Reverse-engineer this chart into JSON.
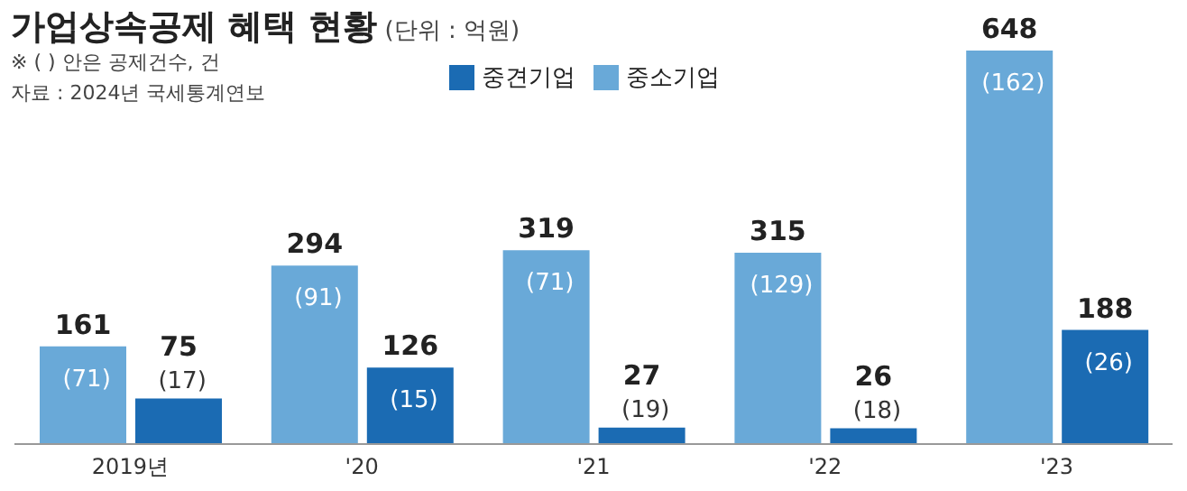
{
  "chart_data": {
    "type": "bar",
    "title": "가업상속공제 혜택 현황",
    "subtitle": "(단위 : 억원)",
    "annotations": [
      "※ ( ) 안은 공제건수, 건",
      "자료 : 2024년 국세통계연보"
    ],
    "categories": [
      "2019년",
      "'20",
      "'21",
      "'22",
      "'23"
    ],
    "series": [
      {
        "name": "중소기업",
        "color": "#69a9d8",
        "values": [
          161,
          294,
          319,
          315,
          648
        ],
        "value_labels": [
          "161\n(71)",
          "294\n(91)",
          "319\n(71)",
          "315\n(129)",
          "648\n(162)"
        ]
      },
      {
        "name": "중견기업",
        "color": "#1b6bb3",
        "values": [
          75,
          126,
          27,
          26,
          188
        ],
        "value_labels": [
          "75\n(17)",
          "126\n(15)",
          "27\n(19)",
          "26\n(18)",
          "188\n(26)"
        ]
      }
    ],
    "legend": "top"
  }
}
